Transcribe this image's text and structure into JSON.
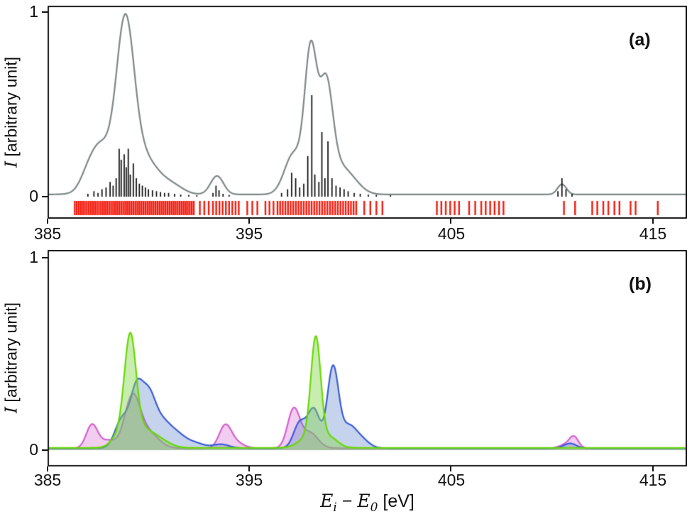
{
  "figure": {
    "bg": "#ffffff",
    "axis_color": "#151515"
  },
  "labels": {
    "ylabel_var": "I",
    "ylabel_rest": " [arbitrary unit]",
    "xlabel_var1": "E",
    "xlabel_sub1": "i",
    "xlabel_minus": " − ",
    "xlabel_var2": "E",
    "xlabel_sub2": "0",
    "xlabel_unit": " [eV]"
  },
  "chart_data": [
    {
      "type": "line",
      "panel_label": "(a)",
      "ylabel": "I [arbitrary unit]",
      "xlabel": "Ei − E0 [eV]",
      "xlim": [
        385,
        416.7
      ],
      "ylim": [
        0,
        1.05
      ],
      "xticks": [
        "385",
        "395",
        "405",
        "415"
      ],
      "xtick_values": [
        385,
        395,
        405,
        415
      ],
      "yticks": [
        "0",
        "1"
      ],
      "ytick_values": [
        0,
        1
      ],
      "series": [
        {
          "name": "convolved-spectrum",
          "color": "#7d8687",
          "baseline": 0.012,
          "peaks": [
            [
              386.9,
              0.05,
              0.35
            ],
            [
              387.5,
              0.16,
              0.45
            ],
            [
              388.85,
              0.7,
              0.42
            ],
            [
              388.4,
              0.15,
              0.9
            ],
            [
              389.4,
              0.18,
              0.8
            ],
            [
              390.4,
              0.045,
              0.6
            ],
            [
              391.3,
              0.035,
              0.5
            ],
            [
              393.4,
              0.1,
              0.32
            ],
            [
              397.2,
              0.22,
              0.45
            ],
            [
              398.05,
              0.75,
              0.3
            ],
            [
              398.8,
              0.56,
              0.33
            ],
            [
              399.4,
              0.12,
              0.5
            ],
            [
              400.1,
              0.06,
              0.5
            ],
            [
              410.5,
              0.055,
              0.22
            ]
          ]
        }
      ],
      "sticks": {
        "color": "#0a0a0a",
        "data": [
          [
            387.0,
            0.015
          ],
          [
            387.3,
            0.03
          ],
          [
            387.5,
            0.02
          ],
          [
            387.7,
            0.04
          ],
          [
            387.9,
            0.05
          ],
          [
            388.1,
            0.08
          ],
          [
            388.25,
            0.06
          ],
          [
            388.4,
            0.1
          ],
          [
            388.55,
            0.26
          ],
          [
            388.65,
            0.2
          ],
          [
            388.8,
            0.23
          ],
          [
            388.9,
            0.16
          ],
          [
            389.0,
            0.26
          ],
          [
            389.1,
            0.12
          ],
          [
            389.25,
            0.18
          ],
          [
            389.4,
            0.1
          ],
          [
            389.55,
            0.07
          ],
          [
            389.7,
            0.06
          ],
          [
            389.85,
            0.05
          ],
          [
            390.0,
            0.04
          ],
          [
            390.2,
            0.035
          ],
          [
            390.4,
            0.03
          ],
          [
            390.6,
            0.025
          ],
          [
            390.8,
            0.02
          ],
          [
            391.0,
            0.02
          ],
          [
            391.3,
            0.015
          ],
          [
            391.6,
            0.012
          ],
          [
            392.0,
            0.01
          ],
          [
            392.4,
            0.008
          ],
          [
            393.2,
            0.02
          ],
          [
            393.35,
            0.06
          ],
          [
            393.5,
            0.035
          ],
          [
            393.7,
            0.015
          ],
          [
            394.0,
            0.01
          ],
          [
            396.6,
            0.02
          ],
          [
            396.9,
            0.04
          ],
          [
            397.1,
            0.13
          ],
          [
            397.3,
            0.1
          ],
          [
            397.5,
            0.05
          ],
          [
            397.7,
            0.07
          ],
          [
            397.9,
            0.22
          ],
          [
            398.1,
            0.55
          ],
          [
            398.25,
            0.12
          ],
          [
            398.45,
            0.08
          ],
          [
            398.6,
            0.35
          ],
          [
            398.75,
            0.1
          ],
          [
            398.9,
            0.3
          ],
          [
            399.1,
            0.1
          ],
          [
            399.3,
            0.06
          ],
          [
            399.5,
            0.05
          ],
          [
            399.7,
            0.04
          ],
          [
            399.9,
            0.03
          ],
          [
            400.2,
            0.02
          ],
          [
            400.5,
            0.015
          ],
          [
            400.9,
            0.012
          ],
          [
            401.3,
            0.01
          ],
          [
            402.0,
            0.008
          ],
          [
            410.3,
            0.03
          ],
          [
            410.5,
            0.1
          ],
          [
            410.7,
            0.04
          ],
          [
            411.0,
            0.015
          ]
        ]
      },
      "strips": {
        "color": "#f21b0e",
        "runs": [
          [
            386.35,
            392.3,
            0.1
          ],
          [
            392.55,
            393.0,
            0.22
          ],
          [
            393.2,
            394.5,
            0.16
          ],
          [
            394.9,
            395.4,
            0.25
          ],
          [
            395.8,
            396.2,
            0.2
          ],
          [
            396.4,
            400.4,
            0.13
          ],
          [
            400.7,
            401.6,
            0.3
          ],
          [
            404.3,
            405.5,
            0.22
          ],
          [
            405.9,
            406.2,
            0.3
          ],
          [
            406.5,
            407.7,
            0.22
          ]
        ],
        "singles": [
          410.6,
          411.15,
          412.0,
          412.25,
          412.55,
          412.8,
          413.1,
          413.35,
          413.9,
          414.15,
          415.25
        ]
      }
    },
    {
      "type": "area",
      "panel_label": "(b)",
      "ylabel": "I [arbitrary unit]",
      "xlabel": "Ei − E0 [eV]",
      "xlim": [
        385,
        416.7
      ],
      "ylim": [
        0,
        1.05
      ],
      "xticks": [
        "385",
        "395",
        "405",
        "415"
      ],
      "xtick_values": [
        385,
        395,
        405,
        415
      ],
      "yticks": [
        "0",
        "1"
      ],
      "ytick_values": [
        0,
        1
      ],
      "series": [
        {
          "name": "magenta-component",
          "color": "#d45fd0",
          "fill": "rgba(220,130,215,0.40)",
          "baseline": 0.01,
          "peaks": [
            [
              387.2,
              0.12,
              0.28
            ],
            [
              388.0,
              0.04,
              0.4
            ],
            [
              389.2,
              0.26,
              0.38
            ],
            [
              390.0,
              0.08,
              0.5
            ],
            [
              393.8,
              0.11,
              0.3
            ],
            [
              394.3,
              0.03,
              0.4
            ],
            [
              397.2,
              0.2,
              0.3
            ],
            [
              398.0,
              0.08,
              0.4
            ],
            [
              410.7,
              0.02,
              0.3
            ],
            [
              411.1,
              0.055,
              0.22
            ]
          ]
        },
        {
          "name": "blue-component",
          "color": "#3b5cd6",
          "fill": "rgba(90,130,200,0.35)",
          "baseline": 0.01,
          "peaks": [
            [
              388.7,
              0.15,
              0.35
            ],
            [
              389.4,
              0.27,
              0.3
            ],
            [
              390.0,
              0.26,
              0.35
            ],
            [
              390.7,
              0.12,
              0.4
            ],
            [
              391.4,
              0.06,
              0.4
            ],
            [
              392.2,
              0.03,
              0.5
            ],
            [
              393.6,
              0.02,
              0.4
            ],
            [
              397.5,
              0.13,
              0.3
            ],
            [
              398.2,
              0.2,
              0.3
            ],
            [
              399.15,
              0.42,
              0.28
            ],
            [
              399.9,
              0.1,
              0.35
            ],
            [
              400.5,
              0.05,
              0.4
            ],
            [
              410.9,
              0.025,
              0.3
            ]
          ]
        },
        {
          "name": "green-component",
          "color": "#66d900",
          "fill": "rgba(135,216,80,0.45)",
          "baseline": 0.012,
          "peaks": [
            [
              388.6,
              0.06,
              0.4
            ],
            [
              389.1,
              0.5,
              0.28
            ],
            [
              389.6,
              0.1,
              0.6
            ],
            [
              390.6,
              0.03,
              0.5
            ],
            [
              398.0,
              0.06,
              0.5
            ],
            [
              398.3,
              0.52,
              0.24
            ],
            [
              399.0,
              0.05,
              0.4
            ]
          ]
        }
      ]
    }
  ]
}
